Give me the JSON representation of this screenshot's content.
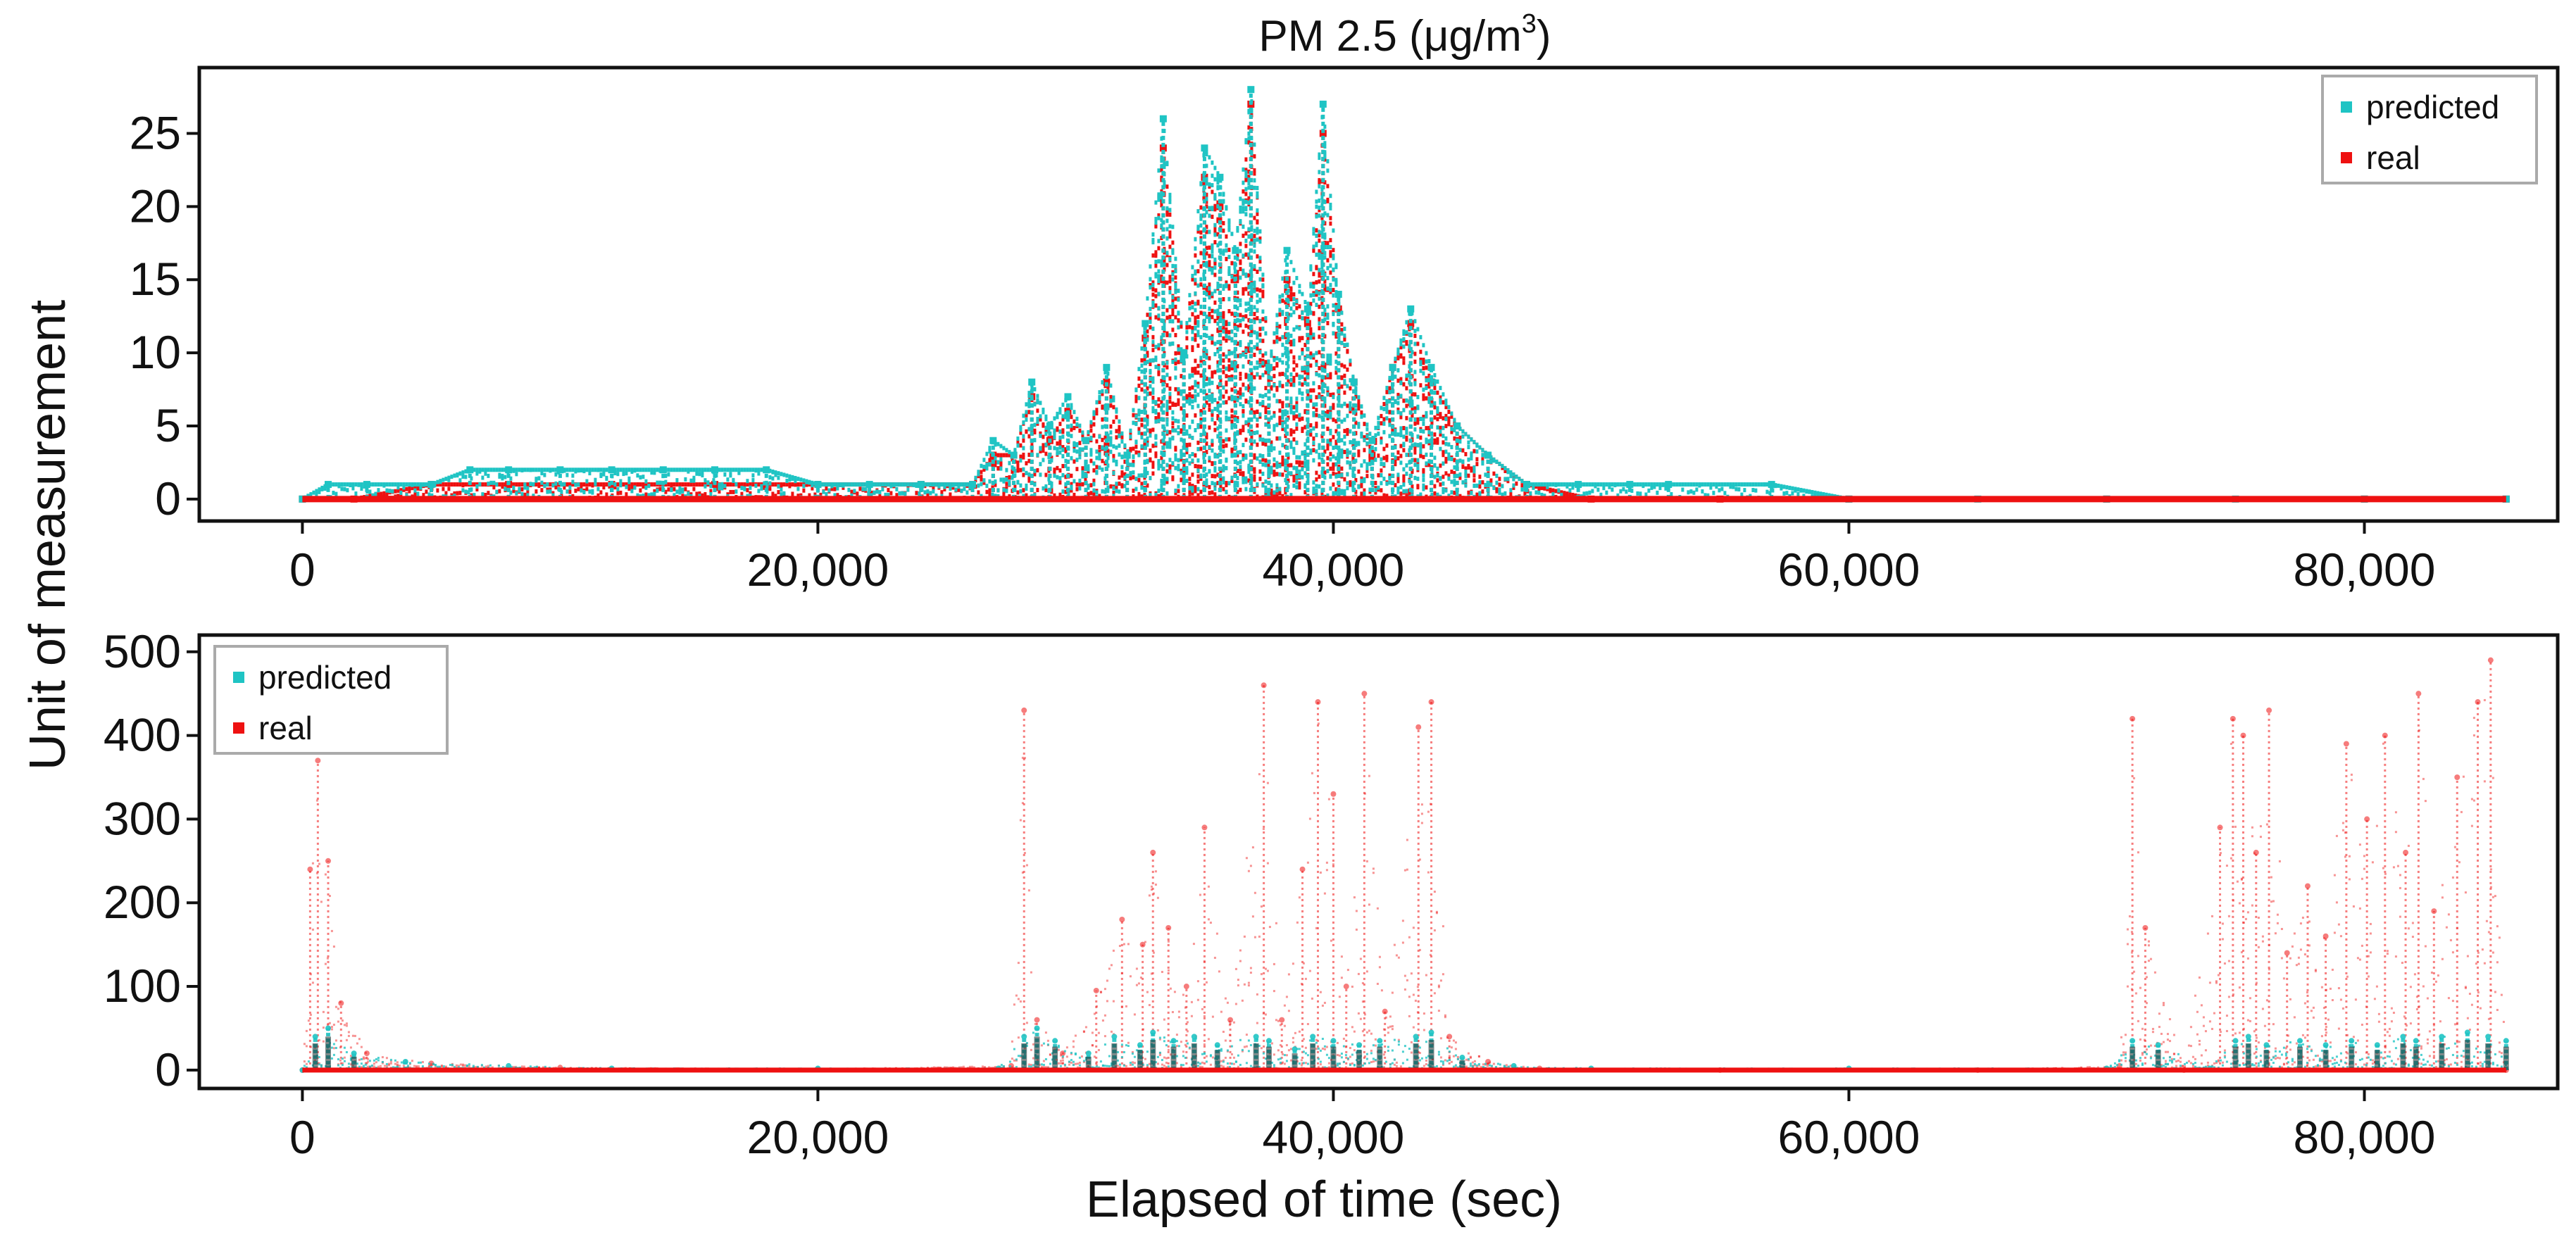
{
  "figure": {
    "ylabel": "Unit of measurement",
    "xlabel": "Elapsed of time (sec)"
  },
  "colors": {
    "predicted": "#1fc4c4",
    "real": "#ee1111",
    "dark": "#1a2a2a"
  },
  "chart_data": [
    {
      "type": "scatter",
      "title": "PM 2.5 (μg/m³)",
      "title_main": "PM 2.5 (μg/m",
      "title_sup": "3",
      "title_end": ")",
      "xlim": [
        -4000,
        87500
      ],
      "ylim": [
        -1.5,
        29.5
      ],
      "xticks": [
        0,
        20000,
        40000,
        60000,
        80000
      ],
      "xtick_labels": [
        "0",
        "20,000",
        "40,000",
        "60,000",
        "80,000"
      ],
      "yticks": [
        0,
        5,
        10,
        15,
        20,
        25
      ],
      "ytick_labels": [
        "0",
        "5",
        "10",
        "15",
        "20",
        "25"
      ],
      "legend": {
        "position": "top-right",
        "entries": [
          "predicted",
          "real"
        ]
      },
      "series": [
        {
          "name": "predicted",
          "color": "#1fc4c4",
          "x": [
            0,
            1000,
            2500,
            5000,
            6500,
            8000,
            10000,
            12000,
            14000,
            16000,
            18000,
            20000,
            22000,
            24000,
            26000,
            26800,
            27600,
            28300,
            29000,
            29700,
            30400,
            31200,
            32000,
            32700,
            33400,
            34200,
            35000,
            35600,
            36200,
            36800,
            37500,
            38200,
            39000,
            39600,
            40200,
            40800,
            41500,
            42300,
            43000,
            43800,
            44800,
            46000,
            47500,
            49500,
            51500,
            53000,
            57000,
            60000,
            65000,
            70000,
            75000,
            80000,
            85500
          ],
          "y": [
            0,
            1,
            1,
            1,
            2,
            2,
            2,
            2,
            2,
            2,
            2,
            1,
            1,
            1,
            1,
            4,
            3,
            8,
            5,
            7,
            4,
            9,
            3,
            12,
            26,
            10,
            24,
            22,
            17,
            28,
            9,
            17,
            13,
            27,
            14,
            8,
            4,
            9,
            13,
            9,
            5,
            3,
            1,
            1,
            1,
            1,
            1,
            0,
            0,
            0,
            0,
            0,
            0
          ]
        },
        {
          "name": "real",
          "color": "#ee1111",
          "x": [
            0,
            2000,
            5000,
            8000,
            12000,
            16000,
            20000,
            24000,
            26000,
            26800,
            27600,
            28300,
            29000,
            29700,
            30400,
            31200,
            32000,
            32700,
            33400,
            34200,
            35000,
            35600,
            36200,
            36800,
            37500,
            38200,
            39000,
            39600,
            40200,
            40800,
            41500,
            42300,
            43000,
            43800,
            44800,
            46000,
            47500,
            50000,
            55000,
            60000,
            70000,
            80000,
            85500
          ],
          "y": [
            0,
            0,
            1,
            1,
            1,
            1,
            1,
            1,
            1,
            3,
            3,
            7,
            4,
            6,
            4,
            8,
            3,
            11,
            24,
            10,
            22,
            20,
            15,
            27,
            9,
            15,
            12,
            25,
            13,
            8,
            3,
            9,
            12,
            8,
            5,
            3,
            1,
            0,
            0,
            0,
            0,
            0,
            0
          ]
        }
      ]
    },
    {
      "type": "scatter",
      "title": "",
      "xlim": [
        -4000,
        87500
      ],
      "ylim": [
        -22,
        520
      ],
      "xticks": [
        0,
        20000,
        40000,
        60000,
        80000
      ],
      "xtick_labels": [
        "0",
        "20,000",
        "40,000",
        "60,000",
        "80,000"
      ],
      "yticks": [
        0,
        100,
        200,
        300,
        400,
        500
      ],
      "ytick_labels": [
        "0",
        "100",
        "200",
        "300",
        "400",
        "500"
      ],
      "legend": {
        "position": "top-left",
        "entries": [
          "predicted",
          "real"
        ]
      },
      "series": [
        {
          "name": "predicted",
          "color": "#1fc4c4",
          "x": [
            0,
            500,
            1000,
            2000,
            4000,
            8000,
            12000,
            20000,
            27000,
            28000,
            28500,
            29200,
            30500,
            31500,
            32500,
            33000,
            33800,
            34600,
            35500,
            37000,
            37500,
            38500,
            39200,
            40000,
            41000,
            41800,
            43200,
            43800,
            45000,
            47000,
            50000,
            60000,
            70000,
            71000,
            72000,
            74000,
            75000,
            75500,
            76200,
            77500,
            78500,
            79500,
            80500,
            81500,
            82000,
            83000,
            84000,
            84800,
            85500
          ],
          "y": [
            0,
            40,
            50,
            20,
            10,
            5,
            2,
            2,
            2,
            40,
            50,
            35,
            20,
            40,
            30,
            45,
            35,
            40,
            30,
            40,
            35,
            25,
            40,
            35,
            30,
            35,
            40,
            45,
            15,
            5,
            2,
            2,
            2,
            35,
            30,
            2,
            35,
            40,
            30,
            35,
            30,
            35,
            30,
            40,
            35,
            40,
            45,
            40,
            35
          ]
        },
        {
          "name": "real",
          "color": "#ee1111",
          "x": [
            0,
            300,
            600,
            1000,
            1500,
            2500,
            5000,
            10000,
            20000,
            27500,
            28000,
            28500,
            29500,
            30800,
            31800,
            32600,
            33000,
            33600,
            34300,
            35000,
            36000,
            37300,
            38000,
            38800,
            39400,
            40000,
            40500,
            41200,
            42000,
            43300,
            43800,
            44500,
            46000,
            48000,
            55000,
            65000,
            70500,
            71000,
            71500,
            73000,
            74400,
            74900,
            75300,
            75800,
            76300,
            77000,
            77800,
            78500,
            79300,
            80100,
            80800,
            81600,
            82100,
            82700,
            83600,
            84400,
            84900,
            85500
          ],
          "y": [
            0,
            240,
            370,
            250,
            80,
            20,
            8,
            3,
            1,
            5,
            430,
            60,
            20,
            95,
            180,
            150,
            260,
            170,
            100,
            290,
            60,
            460,
            60,
            240,
            440,
            330,
            100,
            450,
            70,
            410,
            440,
            40,
            10,
            2,
            0,
            0,
            5,
            420,
            170,
            0,
            290,
            420,
            400,
            260,
            430,
            140,
            220,
            160,
            390,
            300,
            400,
            260,
            450,
            190,
            350,
            440,
            490,
            0
          ]
        }
      ]
    }
  ]
}
